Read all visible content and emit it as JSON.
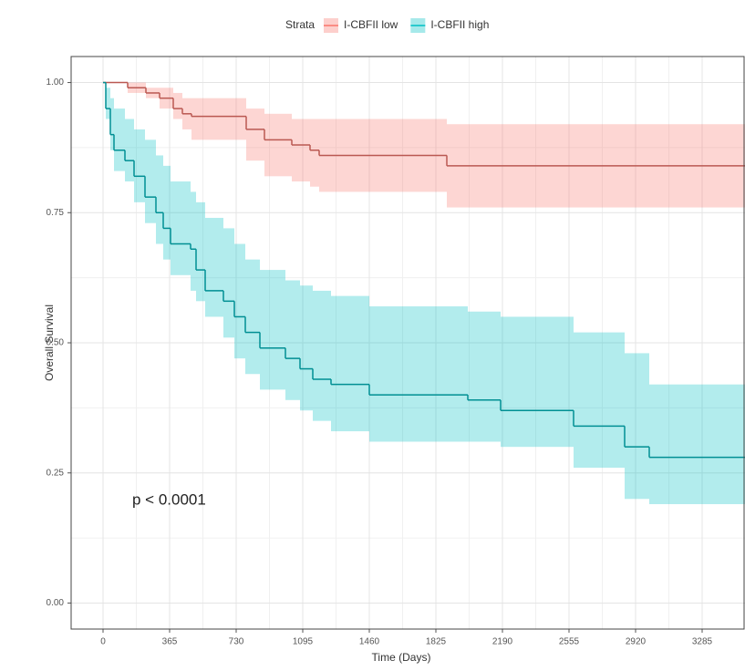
{
  "chart_data": {
    "type": "survival",
    "title_legend": "Strata",
    "xlabel": "Time (Days)",
    "ylabel": "Overall Survival",
    "annotation": "p < 0.0001",
    "xlim": [
      -175,
      3520
    ],
    "ylim": [
      -0.05,
      1.05
    ],
    "xticks": [
      0,
      365,
      730,
      1095,
      1460,
      1825,
      2190,
      2555,
      2920,
      3285
    ],
    "yticks": [
      {
        "value": 0,
        "label": "0.00"
      },
      {
        "value": 0.25,
        "label": "0.25"
      },
      {
        "value": 0.5,
        "label": "0.50"
      },
      {
        "value": 0.75,
        "label": "0.75"
      },
      {
        "value": 1,
        "label": "1.00"
      }
    ],
    "grid": true,
    "legend": "top",
    "series": [
      {
        "name": "I-CBFII low",
        "color": "#F8766D",
        "x": [
          0,
          135,
          235,
          310,
          385,
          435,
          485,
          785,
          885,
          1035,
          1135,
          1185,
          1885
        ],
        "values": [
          1.0,
          0.99,
          0.98,
          0.97,
          0.95,
          0.94,
          0.935,
          0.91,
          0.89,
          0.88,
          0.87,
          0.86,
          0.84
        ],
        "lower": [
          1.0,
          0.98,
          0.97,
          0.95,
          0.93,
          0.91,
          0.89,
          0.85,
          0.82,
          0.81,
          0.8,
          0.79,
          0.76
        ],
        "upper": [
          1.0,
          1.0,
          0.99,
          0.99,
          0.98,
          0.97,
          0.97,
          0.95,
          0.94,
          0.93,
          0.93,
          0.93,
          0.92
        ]
      },
      {
        "name": "I-CBFII high",
        "color": "#00BFC4",
        "x": [
          0,
          15,
          40,
          60,
          120,
          170,
          230,
          290,
          330,
          370,
          480,
          510,
          560,
          660,
          720,
          780,
          860,
          1000,
          1080,
          1150,
          1250,
          1460,
          2000,
          2180,
          2580,
          2860,
          2995
        ],
        "values": [
          1.0,
          0.95,
          0.9,
          0.87,
          0.85,
          0.82,
          0.78,
          0.75,
          0.72,
          0.69,
          0.68,
          0.64,
          0.6,
          0.58,
          0.55,
          0.52,
          0.49,
          0.47,
          0.45,
          0.43,
          0.42,
          0.4,
          0.39,
          0.37,
          0.34,
          0.3,
          0.28
        ],
        "lower": [
          1.0,
          0.93,
          0.87,
          0.83,
          0.81,
          0.77,
          0.73,
          0.69,
          0.66,
          0.63,
          0.6,
          0.58,
          0.55,
          0.51,
          0.47,
          0.44,
          0.41,
          0.39,
          0.37,
          0.35,
          0.33,
          0.31,
          0.31,
          0.3,
          0.26,
          0.2,
          0.19
        ],
        "upper": [
          1.0,
          0.99,
          0.97,
          0.95,
          0.93,
          0.91,
          0.89,
          0.86,
          0.84,
          0.81,
          0.79,
          0.77,
          0.74,
          0.72,
          0.69,
          0.66,
          0.64,
          0.62,
          0.61,
          0.6,
          0.59,
          0.57,
          0.56,
          0.55,
          0.52,
          0.48,
          0.42
        ]
      }
    ]
  }
}
